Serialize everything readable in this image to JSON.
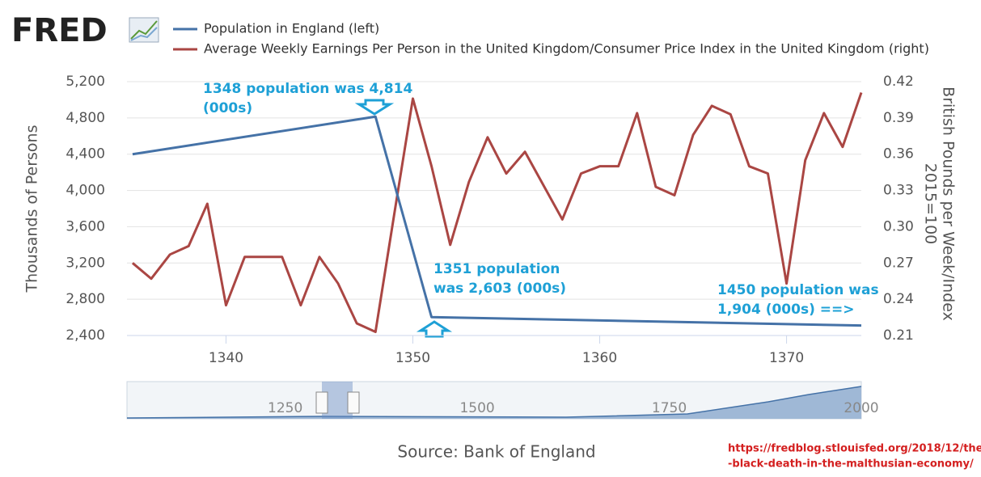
{
  "logo": "FRED",
  "source": "Source: Bank of England",
  "url": [
    "https://fredblog.stlouisfed.org/2018/12/the",
    "-black-death-in-the-malthusian-economy/"
  ],
  "chart_data": {
    "type": "line",
    "ylabel": "Thousands of Persons",
    "y2label": [
      "British Pounds per Week/Index",
      "2015=100"
    ],
    "xlim": [
      1334.7,
      1374
    ],
    "xticks": [
      1340,
      1350,
      1360,
      1370
    ],
    "ylim": [
      2400,
      5200
    ],
    "yticks": [
      {
        "value": 2400,
        "label": "2,400"
      },
      {
        "value": 2800,
        "label": "2,800"
      },
      {
        "value": 3200,
        "label": "3,200"
      },
      {
        "value": 3600,
        "label": "3,600"
      },
      {
        "value": 4000,
        "label": "4,000"
      },
      {
        "value": 4400,
        "label": "4,400"
      },
      {
        "value": 4800,
        "label": "4,800"
      },
      {
        "value": 5200,
        "label": "5,200"
      }
    ],
    "y2lim": [
      0.21,
      0.42
    ],
    "y2ticks": [
      0.21,
      0.24,
      0.27,
      {
        "value": 0.3,
        "label": "0.30"
      },
      0.33,
      0.36,
      0.39,
      0.42
    ],
    "grid": true,
    "series": [
      {
        "name": "Population in England (left)",
        "color": "#4572a7",
        "axis": "y",
        "x": [
          1335,
          1348,
          1351,
          1374
        ],
        "values": [
          4400,
          4814,
          2603,
          2510
        ]
      },
      {
        "name": "Average Weekly Earnings Per Person in the United Kingdom/Consumer Price Index in the United Kingdom (right)",
        "color": "#aa4643",
        "axis": "y2",
        "x": [
          1335,
          1336,
          1337,
          1338,
          1339,
          1340,
          1341,
          1342,
          1343,
          1344,
          1345,
          1346,
          1347,
          1348,
          1349,
          1350,
          1351,
          1352,
          1353,
          1354,
          1355,
          1356,
          1357,
          1358,
          1359,
          1360,
          1361,
          1362,
          1363,
          1364,
          1365,
          1366,
          1367,
          1368,
          1369,
          1370,
          1371,
          1372,
          1373,
          1374
        ],
        "values": [
          0.27,
          0.257,
          0.277,
          0.284,
          0.319,
          0.235,
          0.275,
          0.275,
          0.275,
          0.235,
          0.275,
          0.253,
          0.22,
          0.213,
          0.31,
          0.406,
          0.35,
          0.285,
          0.337,
          0.374,
          0.344,
          0.362,
          0.334,
          0.306,
          0.344,
          0.35,
          0.35,
          0.394,
          0.333,
          0.326,
          0.376,
          0.4,
          0.393,
          0.35,
          0.344,
          0.253,
          0.355,
          0.394,
          0.366,
          0.411
        ]
      }
    ],
    "annotations": [
      {
        "lines": [
          "1348 population was 4,814",
          "(000s)"
        ]
      },
      {
        "lines": [
          "1351 population",
          "was 2,603 (000s)"
        ]
      },
      {
        "lines": [
          "1450 population was",
          "1,904 (000s) ==>"
        ]
      }
    ],
    "navigator_xlim": [
      1044,
      2000
    ],
    "navigator_ticks": [
      1250,
      1500,
      1750,
      2000
    ]
  }
}
